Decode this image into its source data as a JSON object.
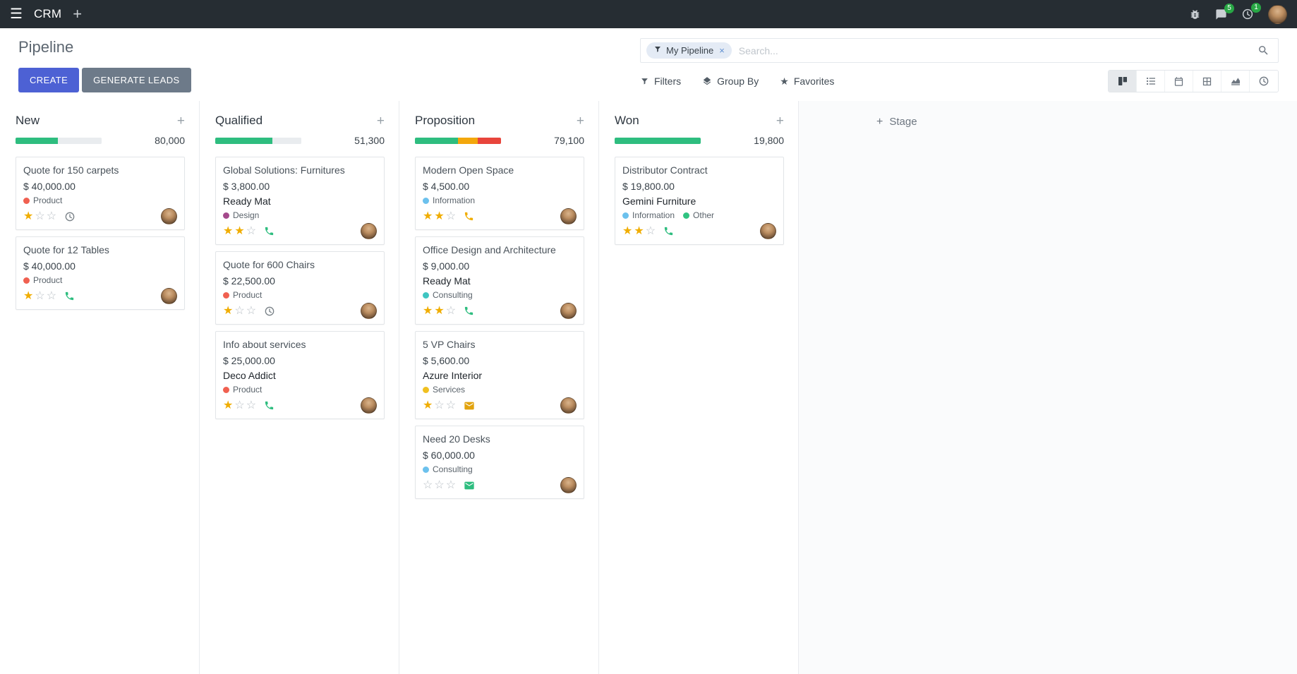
{
  "palette": {
    "navbar": "#262d33",
    "primary": "#4d61d4",
    "success": "#2ebd7f",
    "warning": "#f3a70c",
    "danger": "#e8453c",
    "star": "#f0ad00",
    "badge": "#28a745"
  },
  "navbar": {
    "app_name": "CRM",
    "messages_badge": "5",
    "activities_badge": "1"
  },
  "control_panel": {
    "title": "Pipeline",
    "create_label": "CREATE",
    "generate_leads_label": "GENERATE LEADS",
    "search": {
      "facet_label": "My Pipeline",
      "placeholder": "Search...",
      "remove_facet_label": "×"
    },
    "filter_menus": [
      {
        "label": "Filters"
      },
      {
        "label": "Group By"
      },
      {
        "label": "Favorites"
      }
    ]
  },
  "board": {
    "add_stage_label": "Stage",
    "columns": [
      {
        "name": "New",
        "total": "80,000",
        "progress": [
          {
            "color": "#2ebd7f",
            "pct": 49
          },
          {
            "color": "#e9ecef",
            "pct": 51
          }
        ],
        "cards": [
          {
            "title": "Quote for 150 carpets",
            "amount": "$ 40,000.00",
            "tags": [
              {
                "label": "Product",
                "color": "#f06050"
              }
            ],
            "stars_filled": 1,
            "activity": {
              "icon": "clock",
              "color": "#7a8288"
            }
          },
          {
            "title": "Quote for 12 Tables",
            "amount": "$ 40,000.00",
            "tags": [
              {
                "label": "Product",
                "color": "#f06050"
              }
            ],
            "stars_filled": 1,
            "activity": {
              "icon": "phone",
              "color": "#2ebd7f"
            }
          }
        ]
      },
      {
        "name": "Qualified",
        "total": "51,300",
        "progress": [
          {
            "color": "#2ebd7f",
            "pct": 66
          },
          {
            "color": "#e9ecef",
            "pct": 34
          }
        ],
        "cards": [
          {
            "title": "Global Solutions: Furnitures",
            "amount": "$ 3,800.00",
            "partner": "Ready Mat",
            "tags": [
              {
                "label": "Design",
                "color": "#a4498c"
              }
            ],
            "stars_filled": 2,
            "activity": {
              "icon": "phone",
              "color": "#2ebd7f"
            }
          },
          {
            "title": "Quote for 600 Chairs",
            "amount": "$ 22,500.00",
            "tags": [
              {
                "label": "Product",
                "color": "#f06050"
              }
            ],
            "stars_filled": 1,
            "activity": {
              "icon": "clock",
              "color": "#7a8288"
            }
          },
          {
            "title": "Info about services",
            "amount": "$ 25,000.00",
            "partner": "Deco Addict",
            "tags": [
              {
                "label": "Product",
                "color": "#f06050"
              }
            ],
            "stars_filled": 1,
            "activity": {
              "icon": "phone",
              "color": "#2ebd7f"
            }
          }
        ]
      },
      {
        "name": "Proposition",
        "total": "79,100",
        "progress": [
          {
            "color": "#2ebd7f",
            "pct": 50
          },
          {
            "color": "#f3a70c",
            "pct": 23
          },
          {
            "color": "#e8453c",
            "pct": 27
          }
        ],
        "cards": [
          {
            "title": "Modern Open Space",
            "amount": "$ 4,500.00",
            "tags": [
              {
                "label": "Information",
                "color": "#6cc1ed"
              }
            ],
            "stars_filled": 2,
            "activity": {
              "icon": "phone",
              "color": "#f0ad00"
            }
          },
          {
            "title": "Office Design and Architecture",
            "amount": "$ 9,000.00",
            "partner": "Ready Mat",
            "tags": [
              {
                "label": "Consulting",
                "color": "#3fc5c1"
              }
            ],
            "stars_filled": 2,
            "activity": {
              "icon": "phone",
              "color": "#2ebd7f"
            }
          },
          {
            "title": "5 VP Chairs",
            "amount": "$ 5,600.00",
            "partner": "Azure Interior",
            "tags": [
              {
                "label": "Services",
                "color": "#f0c020"
              }
            ],
            "stars_filled": 1,
            "activity": {
              "icon": "envelope",
              "color": "#e2a30d"
            }
          },
          {
            "title": "Need 20 Desks",
            "amount": "$ 60,000.00",
            "tags": [
              {
                "label": "Consulting",
                "color": "#6cc1ed"
              }
            ],
            "stars_filled": 0,
            "activity": {
              "icon": "envelope",
              "color": "#2ebd7f"
            }
          }
        ]
      },
      {
        "name": "Won",
        "total": "19,800",
        "progress": [
          {
            "color": "#2ebd7f",
            "pct": 100
          }
        ],
        "cards": [
          {
            "title": "Distributor Contract",
            "amount": "$ 19,800.00",
            "partner": "Gemini Furniture",
            "tags": [
              {
                "label": "Information",
                "color": "#6cc1ed"
              },
              {
                "label": "Other",
                "color": "#30c381"
              }
            ],
            "stars_filled": 2,
            "activity": {
              "icon": "phone",
              "color": "#2ebd7f"
            }
          }
        ]
      }
    ]
  }
}
